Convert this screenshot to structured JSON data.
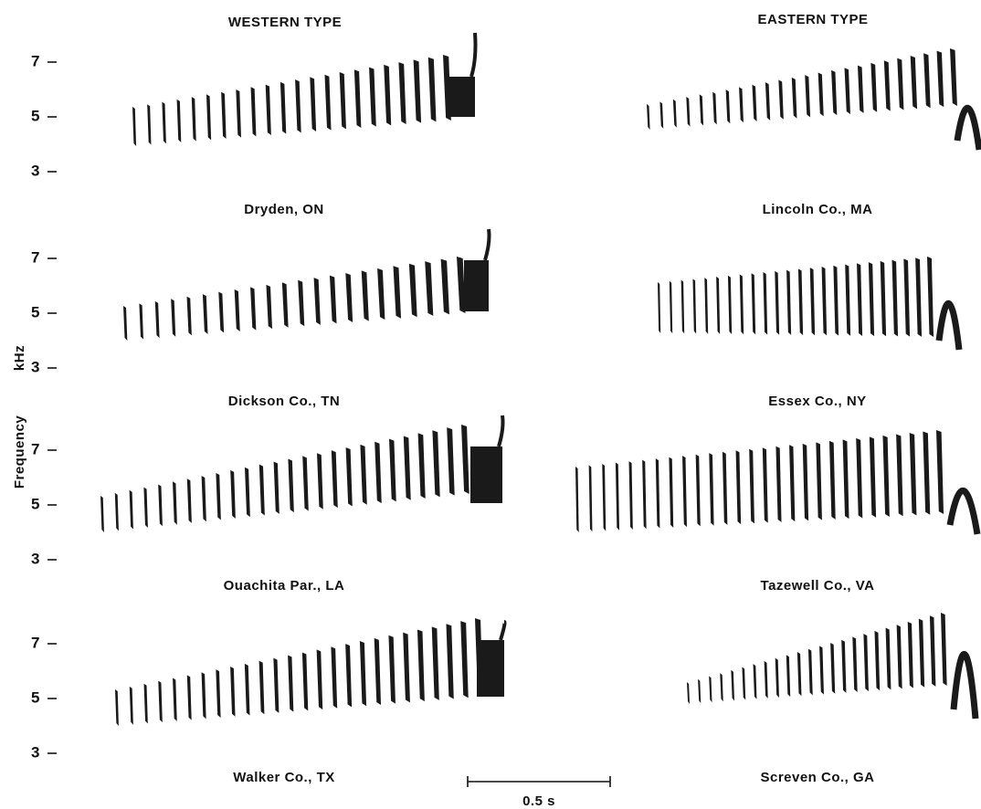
{
  "columns": [
    {
      "title": "WESTERN TYPE"
    },
    {
      "title": "EASTERN TYPE"
    }
  ],
  "axis": {
    "label": "Frequency",
    "unit": "kHz",
    "ylim": [
      3,
      7
    ],
    "yticks": [
      7,
      5,
      3
    ]
  },
  "panels": [
    {
      "label": "Dryden, ON"
    },
    {
      "label": "Lincoln Co., MA"
    },
    {
      "label": "Dickson Co., TN"
    },
    {
      "label": "Essex Co., NY"
    },
    {
      "label": "Ouachita Par., LA"
    },
    {
      "label": "Tazewell Co., VA"
    },
    {
      "label": "Walker Co., TX"
    },
    {
      "label": "Screven Co., GA"
    }
  ],
  "scale_bar": {
    "label": "0.5 s"
  }
}
